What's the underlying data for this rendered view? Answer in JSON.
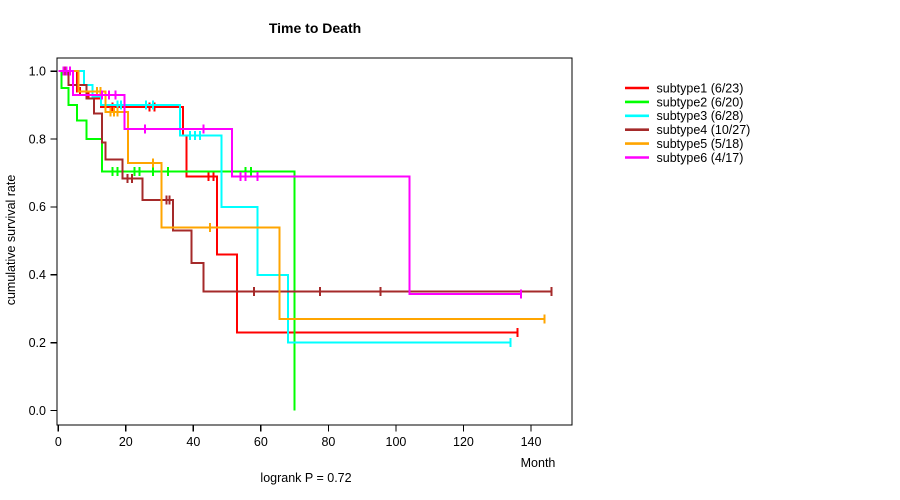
{
  "figure": {
    "title": "Time to Death",
    "x_axis_label": "Month",
    "y_axis_label": "cumulative survival rate",
    "annotation": "logrank P = 0.72"
  },
  "chart_data": {
    "type": "line",
    "chart_kind": "kaplan-meier-step-plot",
    "title": "Time to Death",
    "xlabel": "Month",
    "ylabel": "cumulative survival rate",
    "annotation": "logrank P = 0.72",
    "grid": false,
    "legend_position": "right-outside",
    "xlim": [
      0,
      152
    ],
    "ylim": [
      0,
      1
    ],
    "x_ticks": [
      0,
      20,
      40,
      60,
      80,
      100,
      120,
      140
    ],
    "x_tick_labels": [
      "0",
      "20",
      "40",
      "60",
      "80",
      "100",
      "120",
      "140"
    ],
    "y_ticks": [
      0.0,
      0.2,
      0.4,
      0.6,
      0.8,
      1.0
    ],
    "y_tick_labels": [
      "0.0",
      "0.2",
      "0.4",
      "0.6",
      "0.8",
      "1.0"
    ],
    "series": [
      {
        "name": "subtype1 (6/23)",
        "color": "#FF0000",
        "steps": [
          [
            0,
            1
          ],
          [
            5.5,
            0.94
          ],
          [
            9,
            0.92
          ],
          [
            12.6,
            0.895
          ],
          [
            37,
            0.81
          ],
          [
            38,
            0.69
          ],
          [
            47,
            0.46
          ],
          [
            53,
            0.23
          ],
          [
            136,
            0.23
          ]
        ],
        "censors": [
          [
            2.5,
            1
          ],
          [
            6.5,
            0.94
          ],
          [
            16,
            0.895
          ],
          [
            17.5,
            0.895
          ],
          [
            27,
            0.895
          ],
          [
            28.5,
            0.895
          ],
          [
            44.5,
            0.69
          ],
          [
            46,
            0.69
          ],
          [
            136,
            0.23
          ]
        ]
      },
      {
        "name": "subtype2 (6/20)",
        "color": "#00FF00",
        "steps": [
          [
            0,
            1
          ],
          [
            1,
            0.95
          ],
          [
            3,
            0.9
          ],
          [
            5.5,
            0.855
          ],
          [
            8.3,
            0.8
          ],
          [
            13,
            0.705
          ],
          [
            70,
            0
          ]
        ],
        "censors": [
          [
            16,
            0.705
          ],
          [
            17.5,
            0.705
          ],
          [
            22.5,
            0.705
          ],
          [
            24,
            0.705
          ],
          [
            28,
            0.705
          ],
          [
            32.5,
            0.705
          ],
          [
            55.5,
            0.705
          ],
          [
            57,
            0.705
          ]
        ]
      },
      {
        "name": "subtype3 (6/28)",
        "color": "#00FFFF",
        "steps": [
          [
            0,
            1
          ],
          [
            7.6,
            0.96
          ],
          [
            10.2,
            0.925
          ],
          [
            12.7,
            0.9
          ],
          [
            36,
            0.81
          ],
          [
            48.4,
            0.6
          ],
          [
            59,
            0.4
          ],
          [
            68,
            0.2
          ],
          [
            134,
            0.2
          ]
        ],
        "censors": [
          [
            17.5,
            0.9
          ],
          [
            18.5,
            0.9
          ],
          [
            26,
            0.9
          ],
          [
            28,
            0.9
          ],
          [
            39,
            0.81
          ],
          [
            40.5,
            0.81
          ],
          [
            42,
            0.81
          ],
          [
            134,
            0.2
          ]
        ]
      },
      {
        "name": "subtype4 (10/27)",
        "color": "#A52A2A",
        "steps": [
          [
            0,
            1
          ],
          [
            3,
            0.96
          ],
          [
            8.4,
            0.92
          ],
          [
            10.6,
            0.875
          ],
          [
            12.9,
            0.79
          ],
          [
            14,
            0.74
          ],
          [
            19,
            0.684
          ],
          [
            25,
            0.62
          ],
          [
            34,
            0.53
          ],
          [
            39.5,
            0.434
          ],
          [
            43,
            0.35
          ],
          [
            146,
            0.35
          ]
        ],
        "censors": [
          [
            2.2,
            1
          ],
          [
            20.5,
            0.684
          ],
          [
            21.8,
            0.684
          ],
          [
            32,
            0.62
          ],
          [
            33,
            0.62
          ],
          [
            58,
            0.35
          ],
          [
            77.5,
            0.35
          ],
          [
            95.5,
            0.35
          ],
          [
            146,
            0.35
          ]
        ]
      },
      {
        "name": "subtype5 (5/18)",
        "color": "#FFA500",
        "steps": [
          [
            0,
            1
          ],
          [
            6,
            0.94
          ],
          [
            14,
            0.88
          ],
          [
            20.7,
            0.73
          ],
          [
            30.5,
            0.54
          ],
          [
            65.5,
            0.27
          ],
          [
            144,
            0.27
          ]
        ],
        "censors": [
          [
            11.5,
            0.94
          ],
          [
            12.5,
            0.94
          ],
          [
            15.5,
            0.88
          ],
          [
            16.5,
            0.88
          ],
          [
            17.5,
            0.88
          ],
          [
            28,
            0.73
          ],
          [
            45,
            0.54
          ],
          [
            144,
            0.27
          ]
        ]
      },
      {
        "name": "subtype6 (4/17)",
        "color": "#FF00FF",
        "steps": [
          [
            0,
            1
          ],
          [
            4.4,
            0.93
          ],
          [
            19.6,
            0.83
          ],
          [
            51.4,
            0.69
          ],
          [
            104,
            0.343
          ],
          [
            137,
            0.343
          ]
        ],
        "censors": [
          [
            1.5,
            1
          ],
          [
            2.5,
            1
          ],
          [
            3.5,
            1
          ],
          [
            13,
            0.93
          ],
          [
            15,
            0.93
          ],
          [
            17,
            0.93
          ],
          [
            25.7,
            0.83
          ],
          [
            43,
            0.83
          ],
          [
            54,
            0.69
          ],
          [
            55.5,
            0.69
          ],
          [
            59,
            0.69
          ],
          [
            137,
            0.343
          ]
        ]
      }
    ]
  }
}
